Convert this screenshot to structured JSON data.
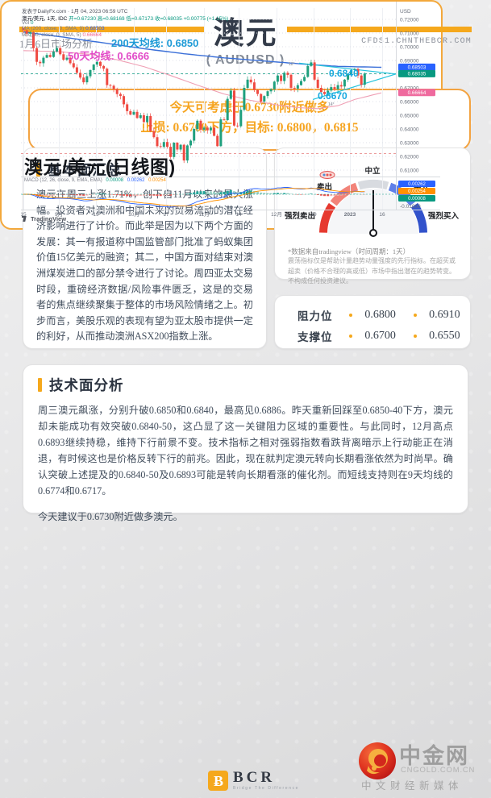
{
  "accent": "#f5a81c",
  "header": {
    "date_label": "1月6日市场分析",
    "title": "澳元",
    "subtitle": "( AUDUSD )",
    "site": "CFDS1.CHNTHEBCR.COM"
  },
  "signal": {
    "line1": "今天可考虑于0.6730附近做多",
    "line2": "止损: 0.6700下方，目标: 0.6800，0.6815"
  },
  "fundamental": {
    "title": "基本面汇总",
    "body": "澳元在周三上涨1.71%，创下自11月以来的最大涨幅。投资者对澳洲和中国未来的贸易流动的潜在经济影响进行了计价。而此举是因为以下两个方面的发展：其一有报道称中国监管部门批准了蚂蚁集团价值15亿美元的融资；其二，中国方面对结束对澳洲煤炭进口的部分禁令进行了讨论。周四亚太交易时段，重磅经济数据/风险事件匮乏，这是的交易者的焦点继续聚集于整体的市场风险情绪之上。初步而言，美股乐观的表现有望为亚太股市提供一定的利好，从而推动澳洲ASX200指数上涨。"
  },
  "gauge": {
    "labels": {
      "neutral": "中立",
      "sell": "卖出",
      "buy": "买入",
      "strong_sell": "强烈卖出",
      "strong_buy": "强烈买入"
    },
    "segment_colors": [
      "#e6392f",
      "#f28379",
      "#d8dbe0",
      "#5f7fe8",
      "#3252cb"
    ],
    "note1": "*数据来自tradingview（时间周期：1天）",
    "note2": "震荡指标仅是帮助计量趋势动量强度的先行指标。在超买或超卖（价格不合理的高或低）市场中指出潜在的趋势转变。不构成任何投资建议。"
  },
  "levels": {
    "resistance_label": "阻力位",
    "resistance": [
      "0.6800",
      "0.6910"
    ],
    "support_label": "支撑位",
    "support": [
      "0.6700",
      "0.6550"
    ]
  },
  "technical": {
    "title": "技术面分析",
    "body": "周三澳元飙涨，分别升破0.6850和0.6840，最高见0.6886。昨天重新回踩至0.6850-40下方，澳元却未能成功有效突破0.6840-50，这凸显了这一关键阻力区域的重要性。与此同时，12月高点0.6893继续持稳，维持下行前景不变。技术指标之相对强弱指数看跌背离暗示上行动能正在消退，有时候这也是价格反转下行的前兆。因此，现在就判定澳元转向长期看涨依然为时尚早。确认突破上述提及的0.6840-50及0.6893可能是转向长期看涨的催化剂。而短线支持则在9天均线的 0.6774和0.6717。",
    "conclusion": "今天建议于0.6730附近做多澳元。"
  },
  "chart_data": {
    "type": "candlestick",
    "published": "发表于DailyFx.com · 1月 04, 2023 06:59 UTC",
    "legend": {
      "symbol": "澳元/美元, 1天, IDC",
      "ohlc": "开=0.67230  高=0.68169  低=0.67173  收=0.68035  +0.00775 (+1.15%)",
      "vol_label": "Vol",
      "vol_value": "0",
      "ma200_label": "MA (200, close, 0, SMA, 9)",
      "ma200_value": "0.68503",
      "ma50_label": "MA (50, close, 0, SMA, 5)",
      "ma50_value": "0.66664"
    },
    "title_overlay": "澳元/美元(日线图)",
    "watermark": "TradingView",
    "y_axis": {
      "currency": "USD",
      "ticks": [
        "0.72000",
        "0.71000",
        "0.70000",
        "0.69000",
        "0.68000",
        "0.67000",
        "0.66000",
        "0.65000",
        "0.64000",
        "0.63000",
        "0.62000",
        "0.61000"
      ],
      "badges": [
        {
          "text": "0.68503",
          "price": 0.68503,
          "bg": "#2962ff"
        },
        {
          "text": "0.68035",
          "price": 0.68035,
          "bg": "#089981"
        },
        {
          "text": "0.66664",
          "price": 0.66664,
          "bg": "#ef6a9e"
        }
      ]
    },
    "x_ticks": [
      {
        "label": "15",
        "x": 3
      },
      {
        "label": "9月",
        "x": 47
      },
      {
        "label": "19",
        "x": 93
      },
      {
        "label": "10月",
        "x": 140
      },
      {
        "label": "17",
        "x": 180
      },
      {
        "label": "11月",
        "x": 227
      },
      {
        "label": "14",
        "x": 270
      },
      {
        "label": "12月",
        "x": 317
      },
      {
        "label": "19",
        "x": 363
      },
      {
        "label": "2023",
        "x": 408,
        "bold": true
      },
      {
        "label": "16",
        "x": 448
      }
    ],
    "first_open": 0.7136,
    "closes": [
      0.712,
      0.7095,
      0.7105,
      0.699,
      0.689,
      0.688,
      0.692,
      0.694,
      0.6925,
      0.6965,
      0.699,
      0.6945,
      0.6905,
      0.692,
      0.688,
      0.685,
      0.681,
      0.6775,
      0.674,
      0.6785,
      0.683,
      0.687,
      0.689,
      0.686,
      0.684,
      0.672,
      0.6715,
      0.669,
      0.6655,
      0.664,
      0.658,
      0.653,
      0.6505,
      0.6525,
      0.648,
      0.65,
      0.645,
      0.6495,
      0.6385,
      0.634,
      0.6275,
      0.627,
      0.6305,
      0.627,
      0.6195,
      0.63,
      0.625,
      0.6285,
      0.617,
      0.628,
      0.6315,
      0.64,
      0.646,
      0.6395,
      0.641,
      0.639,
      0.641,
      0.635,
      0.6275,
      0.647,
      0.6465,
      0.662,
      0.668,
      0.6425,
      0.642,
      0.654,
      0.67,
      0.676,
      0.674,
      0.6685,
      0.6655,
      0.66,
      0.664,
      0.6675,
      0.669,
      0.6745,
      0.679,
      0.675,
      0.681,
      0.6795,
      0.67,
      0.6695,
      0.672,
      0.675,
      0.678,
      0.686,
      0.6886,
      0.676,
      0.67,
      0.667,
      0.6655,
      0.668,
      0.6705,
      0.669,
      0.672,
      0.671,
      0.676,
      0.68,
      0.683,
      0.6838,
      0.679,
      0.6723,
      0.6804
    ],
    "ma200_anchors": [
      [
        0,
        0.7108
      ],
      [
        12,
        0.707
      ],
      [
        24,
        0.7028
      ],
      [
        36,
        0.6986
      ],
      [
        48,
        0.6949
      ],
      [
        60,
        0.6919
      ],
      [
        72,
        0.6896
      ],
      [
        84,
        0.6873
      ],
      [
        94,
        0.6857
      ],
      [
        107,
        0.685
      ]
    ],
    "ma50_anchors": [
      [
        0,
        0.6972
      ],
      [
        10,
        0.6965
      ],
      [
        20,
        0.6945
      ],
      [
        28,
        0.6905
      ],
      [
        36,
        0.6855
      ],
      [
        44,
        0.679
      ],
      [
        52,
        0.672
      ],
      [
        60,
        0.6655
      ],
      [
        68,
        0.6608
      ],
      [
        76,
        0.6575
      ],
      [
        82,
        0.6556
      ],
      [
        88,
        0.6548
      ],
      [
        94,
        0.657
      ],
      [
        99,
        0.6615
      ],
      [
        107,
        0.6664
      ]
    ],
    "dashed_lines": [
      {
        "price": 0.68035,
        "color": "#089981"
      },
      {
        "price": 0.622,
        "color": "#e57d7d"
      }
    ],
    "pennant": {
      "color": "#22c3dc",
      "upper": [
        [
          345,
          0.688
        ],
        [
          465,
          0.6801
        ]
      ],
      "lower": [
        [
          362,
          0.6615
        ],
        [
          465,
          0.6801
        ]
      ]
    },
    "annotations": [
      {
        "text": "200天均线: 0.6850",
        "x": 112,
        "y": 56,
        "color": "#1d9ad6",
        "size": 13
      },
      {
        "text": "50天均线: 0.6666",
        "x": 58,
        "y": 72,
        "color": "#e24bc8",
        "size": 13
      },
      {
        "text": "0.6840",
        "x": 382,
        "y": 93,
        "color": "#16a8e0",
        "size": 12
      },
      {
        "text": "0.6670",
        "x": 368,
        "y": 121,
        "color": "#16a8e0",
        "size": 12
      },
      {
        "text": "12°",
        "x": 332,
        "y": 79,
        "color": "#9aa0aa",
        "size": 5
      },
      {
        "text": "14°",
        "x": 381,
        "y": 129,
        "color": "#9aa0aa",
        "size": 5
      }
    ],
    "marker": {
      "x": 380,
      "y": 215
    },
    "macd": {
      "label": "MACD (12, 26, close, 9, EMA, EMA)",
      "values": [
        {
          "text": "0.00008",
          "color": "#089981"
        },
        {
          "text": "0.00262",
          "color": "#2962ff"
        },
        {
          "text": "0.00254",
          "color": "#ff9100"
        }
      ],
      "badges": [
        {
          "text": "0.00262",
          "bg": "#2962ff"
        },
        {
          "text": "0.00254",
          "bg": "#ff9100"
        },
        {
          "text": "0.00008",
          "bg": "#089981"
        }
      ],
      "axis_label": "-0.01000"
    }
  },
  "footer": {
    "bcr_name": "BCR",
    "bcr_tagline": "Bridge The Difference",
    "cngold_name": "中金网",
    "cngold_domain": "CNGOLD.COM.CN",
    "cngold_slogan": "中文财经新媒体"
  }
}
